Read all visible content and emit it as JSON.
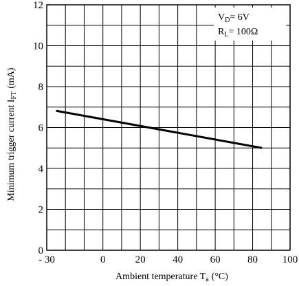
{
  "chart_data": {
    "type": "line",
    "title": "",
    "xlabel": {
      "main": "Ambient temperature T",
      "sub": "a",
      "unit": "(°C)"
    },
    "ylabel": {
      "main": "Minimum trigger current I",
      "sub": "FT",
      "unit": "(mA)"
    },
    "xlim": [
      -30,
      100
    ],
    "ylim": [
      0,
      12
    ],
    "x_ticks": [
      -30,
      0,
      20,
      40,
      60,
      80,
      100
    ],
    "x_tick_labels": [
      "- 30",
      "0",
      "20",
      "40",
      "60",
      "80",
      "100"
    ],
    "y_ticks": [
      0,
      2,
      4,
      6,
      8,
      10,
      12
    ],
    "y_tick_labels": [
      "0",
      "2",
      "4",
      "6",
      "8",
      "10",
      "12"
    ],
    "grid": true,
    "x_grid_step": 10,
    "y_grid_step": 1,
    "series": [
      {
        "x": [
          -25,
          85
        ],
        "y": [
          6.82,
          5.0
        ],
        "color": "#000000"
      }
    ],
    "legend": {
      "placement": "top-right",
      "lines": [
        {
          "main": "V",
          "sub": "D",
          "rest": "= 6V"
        },
        {
          "main": "R",
          "sub": "L",
          "rest": "= 100Ω"
        }
      ]
    }
  }
}
